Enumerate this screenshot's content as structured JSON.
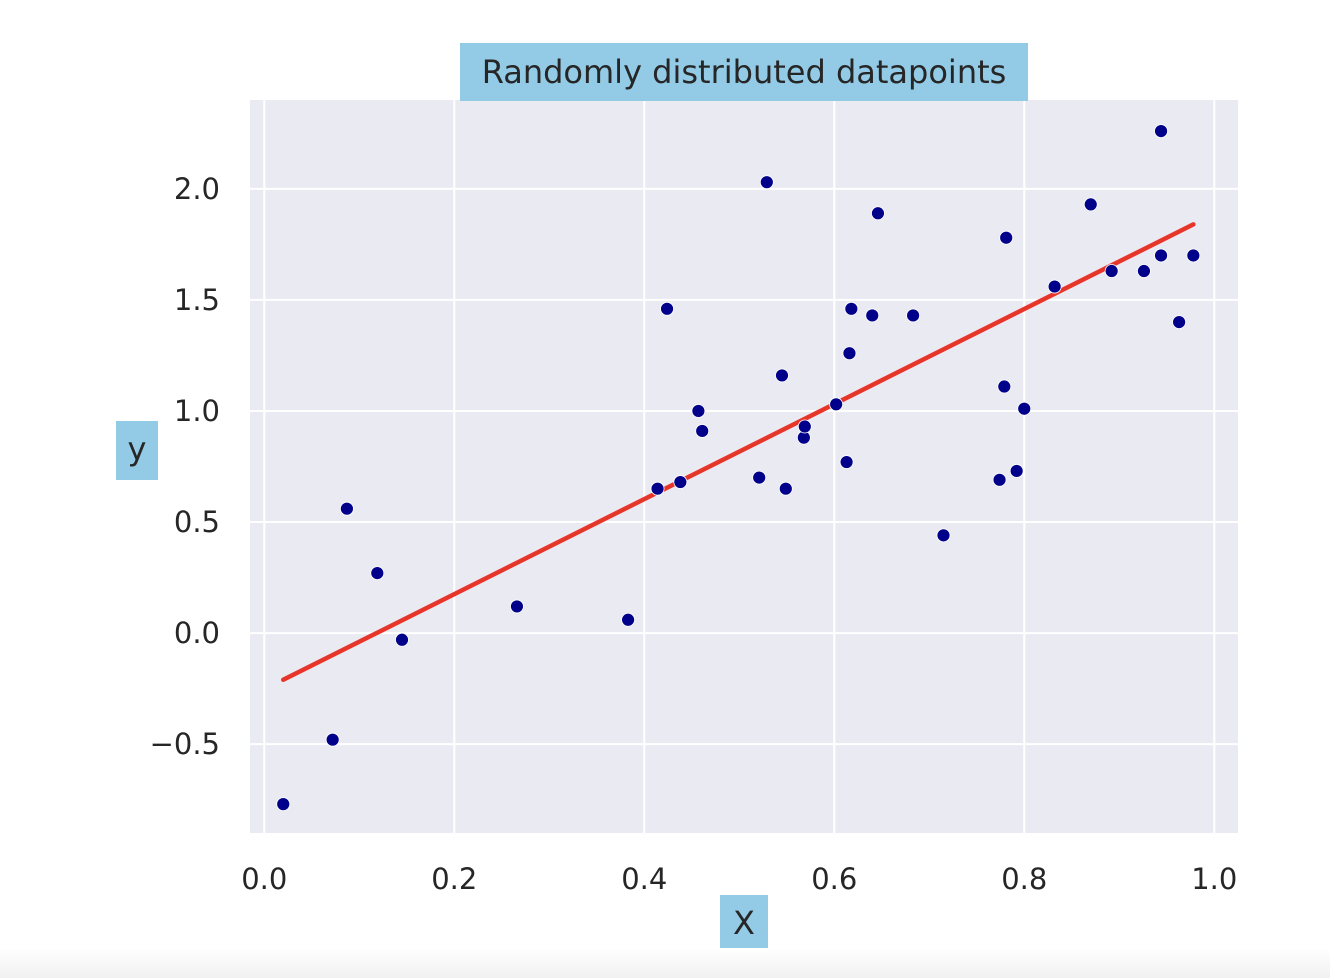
{
  "chart_data": {
    "type": "scatter",
    "title": "Randomly distributed datapoints",
    "xlabel": "X",
    "ylabel": "y",
    "xlim": [
      -0.015,
      1.025
    ],
    "ylim": [
      -0.9,
      2.4
    ],
    "xticks": [
      0.0,
      0.2,
      0.4,
      0.6,
      0.8,
      1.0
    ],
    "xtick_labels": [
      "0.0",
      "0.2",
      "0.4",
      "0.6",
      "0.8",
      "1.0"
    ],
    "yticks": [
      -0.5,
      0.0,
      0.5,
      1.0,
      1.5,
      2.0
    ],
    "ytick_labels": [
      "−0.5",
      "0.0",
      "0.5",
      "1.0",
      "1.5",
      "2.0"
    ],
    "grid": true,
    "legend": "none",
    "label_box_color": "#93cbe6",
    "background_color": "#eaeaf2",
    "grid_color": "#ffffff",
    "point_color": "#00008b",
    "line_color": "#e8352a",
    "points": [
      {
        "x": 0.02,
        "y": -0.77
      },
      {
        "x": 0.072,
        "y": -0.48
      },
      {
        "x": 0.087,
        "y": 0.56
      },
      {
        "x": 0.119,
        "y": 0.27
      },
      {
        "x": 0.145,
        "y": -0.03
      },
      {
        "x": 0.266,
        "y": 0.12
      },
      {
        "x": 0.383,
        "y": 0.06
      },
      {
        "x": 0.414,
        "y": 0.65
      },
      {
        "x": 0.424,
        "y": 1.46
      },
      {
        "x": 0.438,
        "y": 0.68
      },
      {
        "x": 0.457,
        "y": 1.0
      },
      {
        "x": 0.461,
        "y": 0.91
      },
      {
        "x": 0.521,
        "y": 0.7
      },
      {
        "x": 0.529,
        "y": 2.03
      },
      {
        "x": 0.545,
        "y": 1.16
      },
      {
        "x": 0.549,
        "y": 0.65
      },
      {
        "x": 0.568,
        "y": 0.88
      },
      {
        "x": 0.569,
        "y": 0.93
      },
      {
        "x": 0.602,
        "y": 1.03
      },
      {
        "x": 0.613,
        "y": 0.77
      },
      {
        "x": 0.616,
        "y": 1.26
      },
      {
        "x": 0.618,
        "y": 1.46
      },
      {
        "x": 0.64,
        "y": 1.43
      },
      {
        "x": 0.646,
        "y": 1.89
      },
      {
        "x": 0.683,
        "y": 1.43
      },
      {
        "x": 0.715,
        "y": 0.44
      },
      {
        "x": 0.774,
        "y": 0.69
      },
      {
        "x": 0.779,
        "y": 1.11
      },
      {
        "x": 0.781,
        "y": 1.78
      },
      {
        "x": 0.792,
        "y": 0.73
      },
      {
        "x": 0.8,
        "y": 1.01
      },
      {
        "x": 0.832,
        "y": 1.56
      },
      {
        "x": 0.87,
        "y": 1.93
      },
      {
        "x": 0.892,
        "y": 1.63
      },
      {
        "x": 0.926,
        "y": 1.63
      },
      {
        "x": 0.944,
        "y": 1.7
      },
      {
        "x": 0.944,
        "y": 2.26
      },
      {
        "x": 0.963,
        "y": 1.4
      },
      {
        "x": 0.978,
        "y": 1.7
      }
    ],
    "fit_line": {
      "x": [
        0.02,
        0.978
      ],
      "y": [
        -0.21,
        1.84
      ]
    }
  }
}
